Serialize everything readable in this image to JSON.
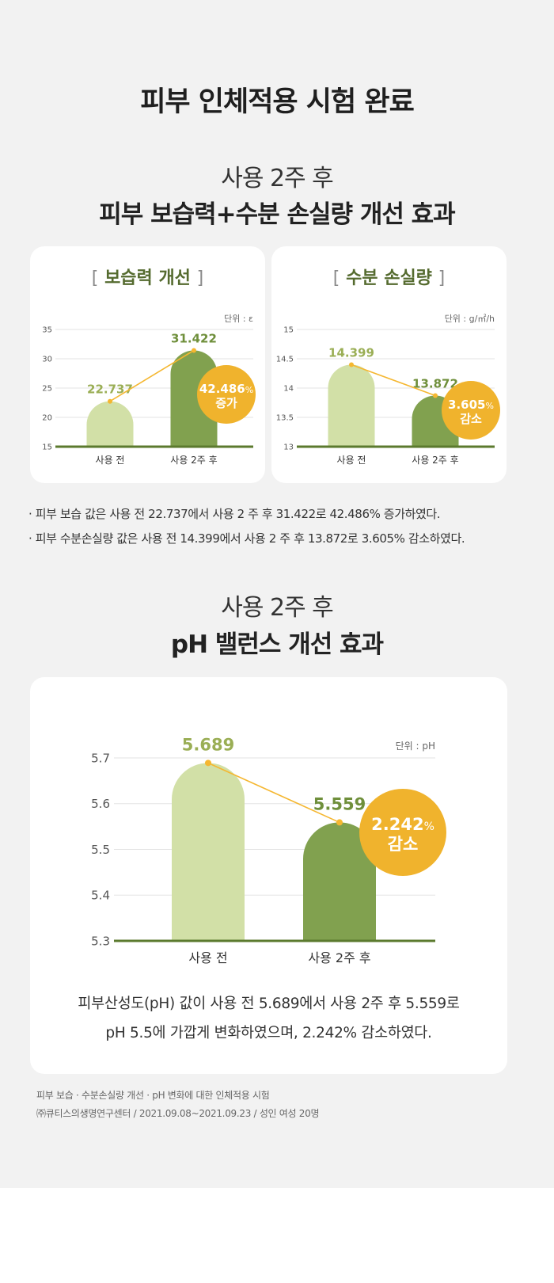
{
  "header": {
    "main_title": "피부 인체적용 시험 완료",
    "sec1_sub": "사용 2주 후",
    "sec1_title": "피부 보습력+수분 손실량 개선 효과",
    "sec2_sub": "사용 2주 후",
    "sec2_title": "pH 밸런스 개선 효과"
  },
  "cards": {
    "moisture_title": "보습력 개선",
    "water_loss_title": "수분 손실량",
    "bracket_open": "[",
    "bracket_close": "]"
  },
  "colors": {
    "bar_before": "#d2e0a7",
    "bar_after": "#81a14f",
    "line": "#f5b731",
    "badge": "#f0b32d",
    "label_before": "#9aae55",
    "label_after": "#6f8f3b",
    "axis": "#5b7a2e",
    "grid": "#e3e3e3"
  },
  "chart_data": [
    {
      "type": "bar",
      "title": "보습력 개선",
      "unit": "단위 : ε",
      "categories": [
        "사용 전",
        "사용 2주 후"
      ],
      "values": [
        22.737,
        31.422
      ],
      "value_labels": [
        "22.737",
        "31.422"
      ],
      "ylim": [
        15,
        35
      ],
      "yticks": [
        15,
        20,
        25,
        30,
        35
      ],
      "ytick_labels": [
        "15",
        "20",
        "25",
        "30",
        "35"
      ],
      "grid": true,
      "badge": {
        "value": "42.486",
        "unit": "%",
        "text": "증가"
      }
    },
    {
      "type": "bar",
      "title": "수분 손실량",
      "unit": "단위 : g/㎡/h",
      "categories": [
        "사용 전",
        "사용 2주 후"
      ],
      "values": [
        14.399,
        13.872
      ],
      "value_labels": [
        "14.399",
        "13.872"
      ],
      "ylim": [
        13,
        15
      ],
      "yticks": [
        13,
        13.5,
        14,
        14.5,
        15
      ],
      "ytick_labels": [
        "13",
        "13.5",
        "14",
        "14.5",
        "15"
      ],
      "grid": true,
      "badge": {
        "value": "3.605",
        "unit": "%",
        "text": "감소"
      }
    },
    {
      "type": "bar",
      "title": "pH 밸런스 개선 효과",
      "unit": "단위 : pH",
      "categories": [
        "사용 전",
        "사용 2주 후"
      ],
      "values": [
        5.689,
        5.559
      ],
      "value_labels": [
        "5.689",
        "5.559"
      ],
      "ylim": [
        5.3,
        5.7
      ],
      "yticks": [
        5.3,
        5.4,
        5.5,
        5.6,
        5.7
      ],
      "ytick_labels": [
        "5.3",
        "5.4",
        "5.5",
        "5.6",
        "5.7"
      ],
      "grid": true,
      "badge": {
        "value": "2.242",
        "unit": "%",
        "text": "감소"
      }
    }
  ],
  "notes": [
    "· 피부 보습 값은 사용 전 22.737에서 사용 2 주 후 31.422로 42.486% 증가하였다.",
    "· 피부 수분손실량 값은 사용 전 14.399에서 사용 2 주 후 13.872로 3.605% 감소하였다."
  ],
  "ph_description": [
    "피부산성도(pH) 값이 사용 전 5.689에서 사용 2주 후 5.559로",
    "pH 5.5에 가깝게 변화하였으며, 2.242% 감소하였다."
  ],
  "footer": [
    "피부 보습 · 수분손실량 개선 · pH 변화에 대한 인체적용 시험",
    "㈜큐티스의생명연구센터 / 2021.09.08~2021.09.23 / 성인 여성 20명"
  ]
}
